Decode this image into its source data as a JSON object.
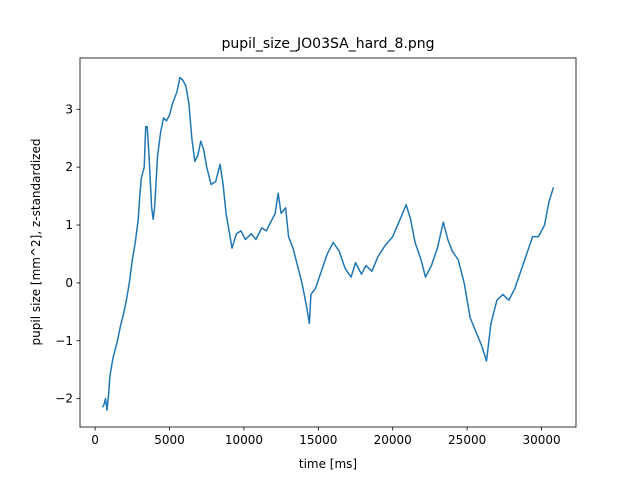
{
  "chart_data": {
    "type": "line",
    "title": "pupil_size_JO03SA_hard_8.png",
    "x_label": "time [ms]",
    "y_label": "pupil size [mm^2], z-standardized",
    "xlim": [
      -1015,
      32315
    ],
    "ylim": [
      -2.49,
      3.886
    ],
    "xticks": [
      0,
      5000,
      10000,
      15000,
      20000,
      25000,
      30000
    ],
    "yticks": [
      {
        "value": -2,
        "label": "−2"
      },
      {
        "value": -1,
        "label": "−1"
      },
      0,
      1,
      2,
      3
    ],
    "grid": false,
    "series": [
      {
        "color": "#1f77b4",
        "x": [
          500,
          600,
          700,
          800,
          900,
          1000,
          1200,
          1500,
          1700,
          1900,
          2100,
          2300,
          2500,
          2700,
          2900,
          3000,
          3100,
          3300,
          3400,
          3500,
          3600,
          3700,
          3800,
          3900,
          4000,
          4200,
          4400,
          4600,
          4800,
          5000,
          5200,
          5500,
          5700,
          5900,
          6100,
          6300,
          6500,
          6700,
          6900,
          7100,
          7300,
          7500,
          7800,
          8100,
          8400,
          8600,
          8800,
          9000,
          9200,
          9500,
          9800,
          10100,
          10500,
          10800,
          11200,
          11500,
          11800,
          12100,
          12300,
          12500,
          12800,
          13000,
          13300,
          13600,
          13900,
          14200,
          14400,
          14500,
          14800,
          15200,
          15600,
          16000,
          16400,
          16800,
          17200,
          17500,
          17900,
          18200,
          18600,
          19000,
          19500,
          20000,
          20500,
          20900,
          21200,
          21500,
          21900,
          22200,
          22600,
          23000,
          23400,
          23700,
          24000,
          24400,
          24800,
          25200,
          25600,
          26000,
          26300,
          26600,
          27000,
          27400,
          27800,
          28200,
          28600,
          29000,
          29400,
          29800,
          30200,
          30500,
          30800
        ],
        "values": [
          -2.15,
          -2.1,
          -2.0,
          -2.2,
          -1.95,
          -1.6,
          -1.3,
          -1.0,
          -0.75,
          -0.55,
          -0.3,
          0.0,
          0.4,
          0.7,
          1.1,
          1.5,
          1.8,
          2.0,
          2.7,
          2.7,
          2.3,
          1.8,
          1.3,
          1.1,
          1.3,
          2.2,
          2.6,
          2.85,
          2.8,
          2.9,
          3.1,
          3.3,
          3.55,
          3.5,
          3.4,
          3.1,
          2.5,
          2.1,
          2.2,
          2.45,
          2.3,
          2.0,
          1.7,
          1.75,
          2.05,
          1.7,
          1.2,
          0.9,
          0.6,
          0.85,
          0.9,
          0.75,
          0.85,
          0.75,
          0.95,
          0.9,
          1.05,
          1.2,
          1.55,
          1.2,
          1.3,
          0.8,
          0.6,
          0.3,
          0.0,
          -0.4,
          -0.7,
          -0.2,
          -0.1,
          0.2,
          0.5,
          0.7,
          0.55,
          0.25,
          0.1,
          0.35,
          0.15,
          0.3,
          0.2,
          0.45,
          0.65,
          0.8,
          1.1,
          1.35,
          1.1,
          0.7,
          0.4,
          0.1,
          0.3,
          0.6,
          1.05,
          0.75,
          0.55,
          0.4,
          0.0,
          -0.6,
          -0.85,
          -1.1,
          -1.35,
          -0.7,
          -0.3,
          -0.2,
          -0.3,
          -0.1,
          0.2,
          0.5,
          0.8,
          0.8,
          1.0,
          1.4,
          1.65
        ]
      }
    ]
  }
}
